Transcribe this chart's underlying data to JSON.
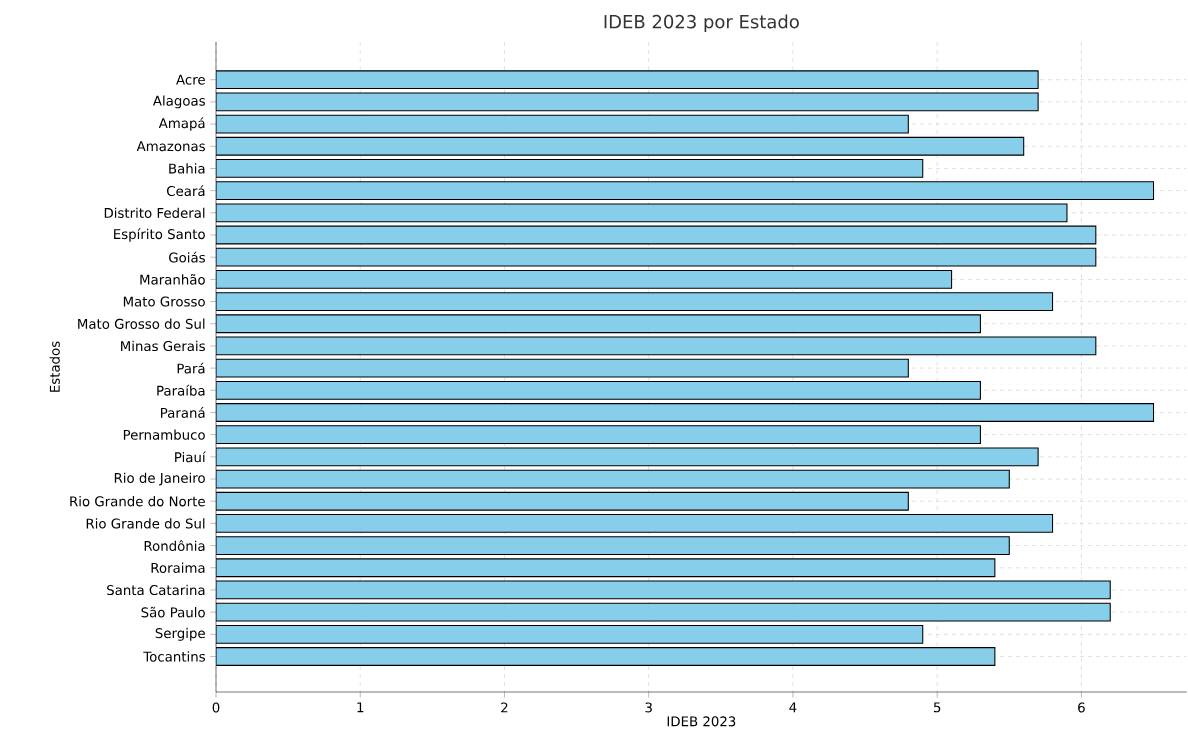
{
  "chart_data": {
    "type": "bar",
    "orientation": "horizontal",
    "title": "IDEB 2023 por Estado",
    "xlabel": "IDEB 2023",
    "ylabel": "Estados",
    "categories": [
      "Acre",
      "Alagoas",
      "Amapá",
      "Amazonas",
      "Bahia",
      "Ceará",
      "Distrito Federal",
      "Espírito Santo",
      "Goiás",
      "Maranhão",
      "Mato Grosso",
      "Mato Grosso do Sul",
      "Minas Gerais",
      "Pará",
      "Paraíba",
      "Paraná",
      "Pernambuco",
      "Piauí",
      "Rio de Janeiro",
      "Rio Grande do Norte",
      "Rio Grande do Sul",
      "Rondônia",
      "Roraima",
      "Santa Catarina",
      "São Paulo",
      "Sergipe",
      "Tocantins"
    ],
    "values": [
      5.7,
      5.7,
      4.8,
      5.6,
      4.9,
      6.5,
      5.9,
      6.1,
      6.1,
      5.1,
      5.8,
      5.3,
      6.1,
      4.8,
      5.3,
      6.5,
      5.3,
      5.7,
      5.5,
      4.8,
      5.8,
      5.5,
      5.4,
      6.2,
      6.2,
      4.9,
      5.4
    ],
    "color": "#87ceeb",
    "xlim": [
      0,
      6.73
    ],
    "xticks": [
      0,
      1,
      2,
      3,
      4,
      5,
      6
    ],
    "grid": true
  }
}
